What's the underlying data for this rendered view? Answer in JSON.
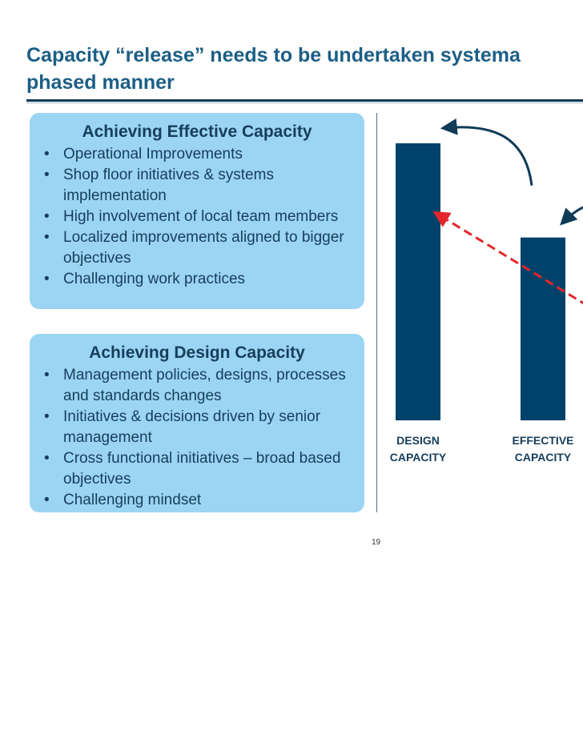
{
  "slide": {
    "title_line1": "Capacity “release” needs to be undertaken systema",
    "title_line2": "phased manner",
    "page_number": "19"
  },
  "boxes": [
    {
      "heading": "Achieving Effective Capacity",
      "bullets": [
        "Operational Improvements",
        "Shop floor initiatives & systems implementation",
        "High involvement of local team members",
        "Localized improvements aligned to bigger objectives",
        "Challenging work practices"
      ]
    },
    {
      "heading": "Achieving Design Capacity",
      "bullets": [
        "Management policies, designs, processes and standards changes",
        "Initiatives & decisions driven by senior management",
        "Cross functional initiatives – broad based objectives",
        "Challenging mindset"
      ]
    }
  ],
  "chart_data": {
    "type": "bar",
    "categories": [
      [
        "DESIGN",
        "CAPACITY"
      ],
      [
        "EFFECTIVE",
        "CAPACITY"
      ]
    ],
    "values": [
      100,
      66
    ],
    "ylim": [
      0,
      100
    ],
    "bar_color": "#00426a",
    "arrow_color": "#0f3b57",
    "trend_color": "#e3262b"
  },
  "colors": {
    "title": "#1c5f86",
    "box_bg": "#9bd5f3",
    "box_text": "#173e5b"
  }
}
